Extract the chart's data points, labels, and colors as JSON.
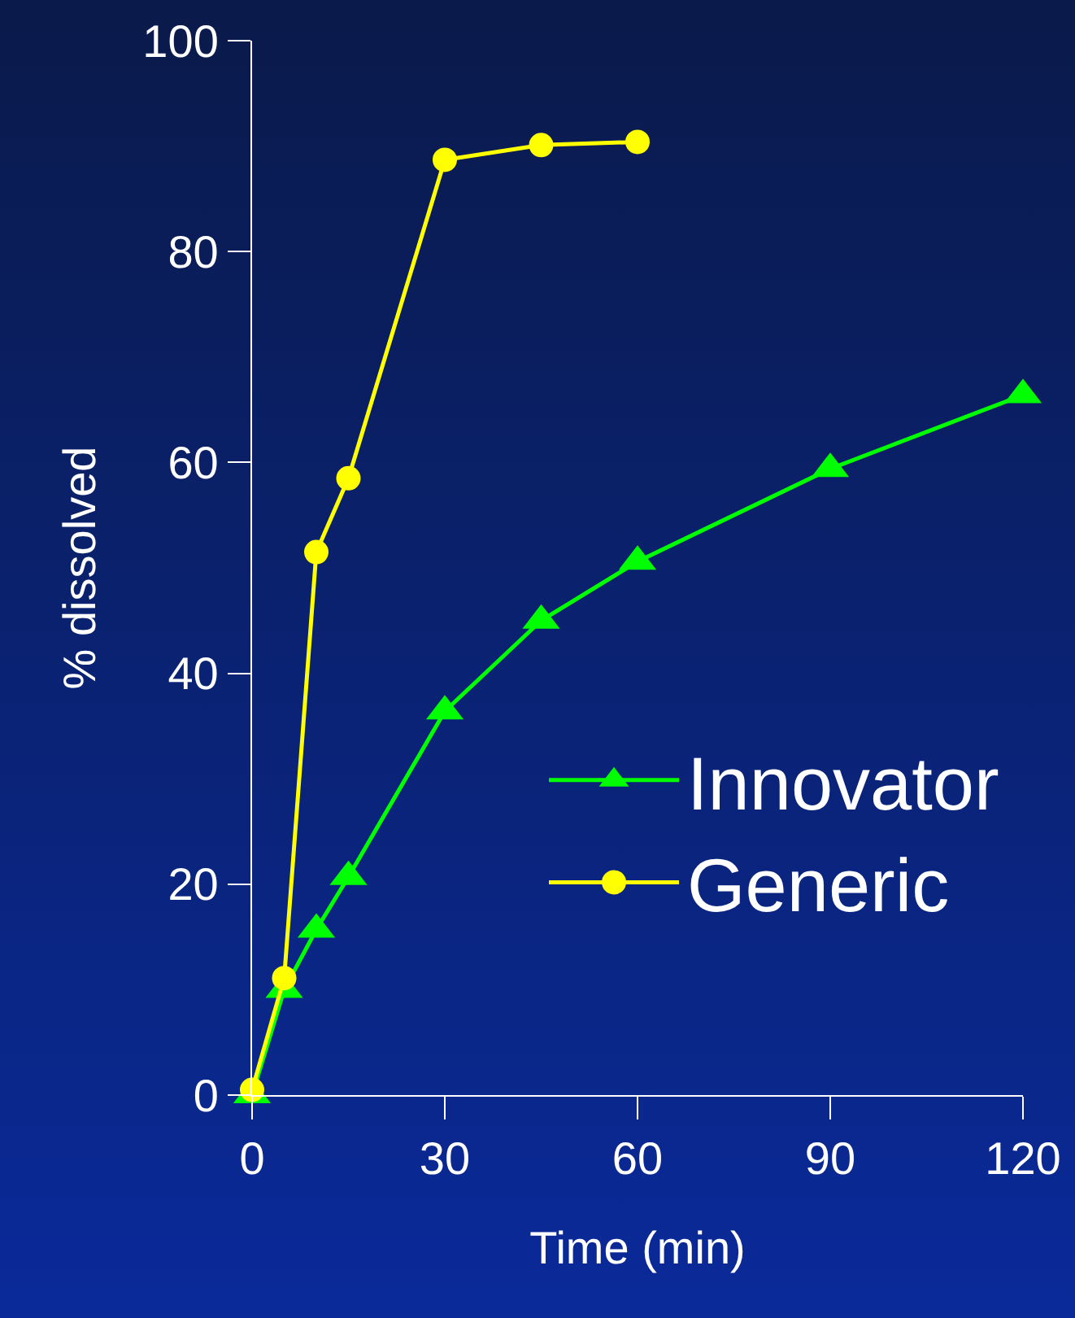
{
  "chart_data": {
    "type": "line",
    "xlabel": "Time (min)",
    "ylabel": "% dissolved",
    "xlim": [
      0,
      120
    ],
    "xticks": [
      0,
      30,
      60,
      90,
      120
    ],
    "ylim": [
      0,
      100
    ],
    "yticks": [
      0,
      20,
      40,
      60,
      80,
      100
    ],
    "grid": false,
    "legend": "right",
    "line_style": "solid",
    "series": [
      {
        "name": "Innovator",
        "color": "#00ff00",
        "marker": "triangle",
        "x": [
          0,
          5,
          10,
          15,
          30,
          45,
          60,
          90,
          120
        ],
        "values": [
          0,
          10,
          15.7,
          20.7,
          36.4,
          45,
          50.6,
          59.4,
          66.4
        ]
      },
      {
        "name": "Generic",
        "color": "#ffff00",
        "marker": "circle",
        "x": [
          0,
          5,
          10,
          15,
          30,
          45,
          60
        ],
        "values": [
          0.5,
          11.1,
          51.5,
          58.5,
          88.7,
          90.1,
          90.4
        ]
      }
    ]
  }
}
